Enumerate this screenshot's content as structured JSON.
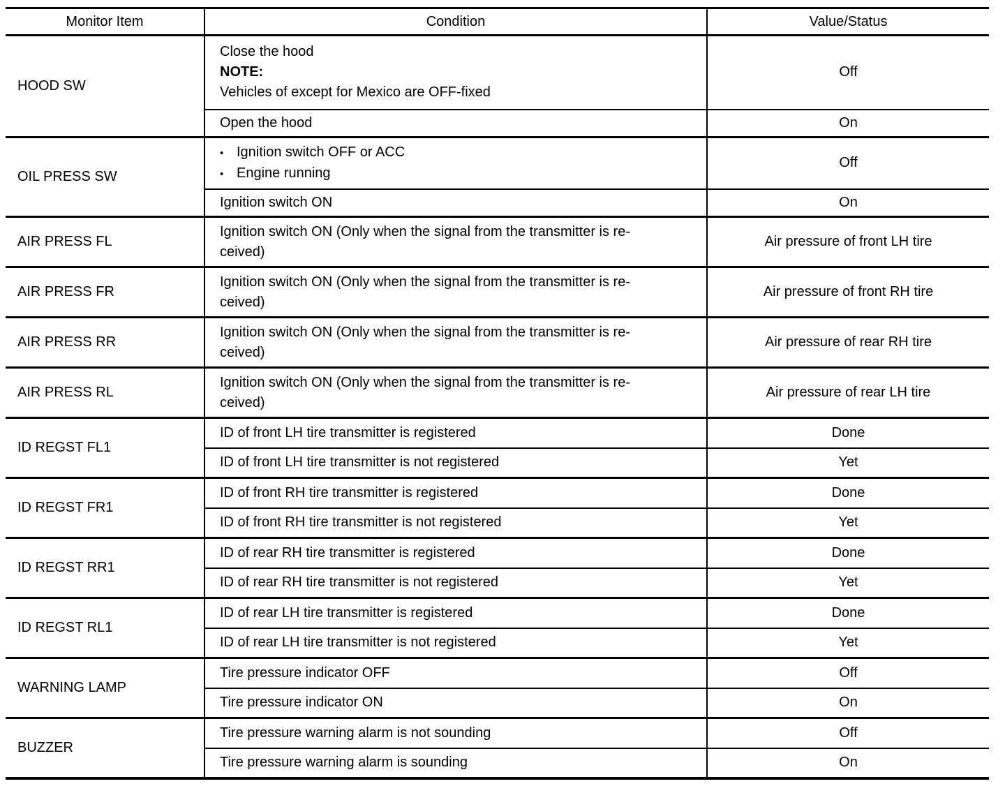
{
  "page": {
    "background_color": "#ffffff",
    "text_color": "#000000",
    "border_color": "#000000"
  },
  "table": {
    "bullet_char": "•",
    "headers": [
      "Monitor Item",
      "Condition",
      "Value/Status"
    ],
    "groups": [
      {
        "item": "HOOD SW",
        "rows": [
          {
            "condition_line1": "Close the hood",
            "note_label": "NOTE:",
            "condition_line2": "Vehicles of except for Mexico are OFF-fixed",
            "value": "Off"
          },
          {
            "condition": "Open the hood",
            "value": "On"
          }
        ]
      },
      {
        "item": "OIL PRESS SW",
        "rows": [
          {
            "bullets": [
              "Ignition switch OFF or ACC",
              "Engine running"
            ],
            "value": "Off"
          },
          {
            "condition": "Ignition switch ON",
            "value": "On"
          }
        ]
      },
      {
        "item": "AIR PRESS FL",
        "rows": [
          {
            "condition": "Ignition switch ON (Only when the signal from the transmitter is re-\nceived)",
            "value": "Air pressure of front LH tire"
          }
        ]
      },
      {
        "item": "AIR PRESS FR",
        "rows": [
          {
            "condition": "Ignition switch ON (Only when the signal from the transmitter is re-\nceived)",
            "value": "Air pressure of front RH tire"
          }
        ]
      },
      {
        "item": "AIR PRESS RR",
        "rows": [
          {
            "condition": "Ignition switch ON (Only when the signal from the transmitter is re-\nceived)",
            "value": "Air pressure of rear RH tire"
          }
        ]
      },
      {
        "item": "AIR PRESS RL",
        "rows": [
          {
            "condition": "Ignition switch ON (Only when the signal from the transmitter is re-\nceived)",
            "value": "Air pressure of rear LH tire"
          }
        ]
      },
      {
        "item": "ID REGST FL1",
        "rows": [
          {
            "condition": "ID of front LH tire transmitter is registered",
            "value": "Done"
          },
          {
            "condition": "ID of front LH tire transmitter is not registered",
            "value": "Yet"
          }
        ]
      },
      {
        "item": "ID REGST FR1",
        "rows": [
          {
            "condition": "ID of front RH tire transmitter is registered",
            "value": "Done"
          },
          {
            "condition": "ID of front RH tire transmitter is not registered",
            "value": "Yet"
          }
        ]
      },
      {
        "item": "ID REGST RR1",
        "rows": [
          {
            "condition": "ID of rear RH tire transmitter is registered",
            "value": "Done"
          },
          {
            "condition": "ID of rear RH tire transmitter is not registered",
            "value": "Yet"
          }
        ]
      },
      {
        "item": "ID REGST RL1",
        "rows": [
          {
            "condition": "ID of rear LH tire transmitter is registered",
            "value": "Done"
          },
          {
            "condition": "ID of rear LH tire transmitter is not registered",
            "value": "Yet"
          }
        ]
      },
      {
        "item": "WARNING LAMP",
        "rows": [
          {
            "condition": "Tire pressure indicator OFF",
            "value": "Off"
          },
          {
            "condition": "Tire pressure indicator ON",
            "value": "On"
          }
        ]
      },
      {
        "item": "BUZZER",
        "rows": [
          {
            "condition": "Tire pressure warning alarm is not sounding",
            "value": "Off"
          },
          {
            "condition": "Tire pressure warning alarm is sounding",
            "value": "On"
          }
        ]
      }
    ]
  }
}
